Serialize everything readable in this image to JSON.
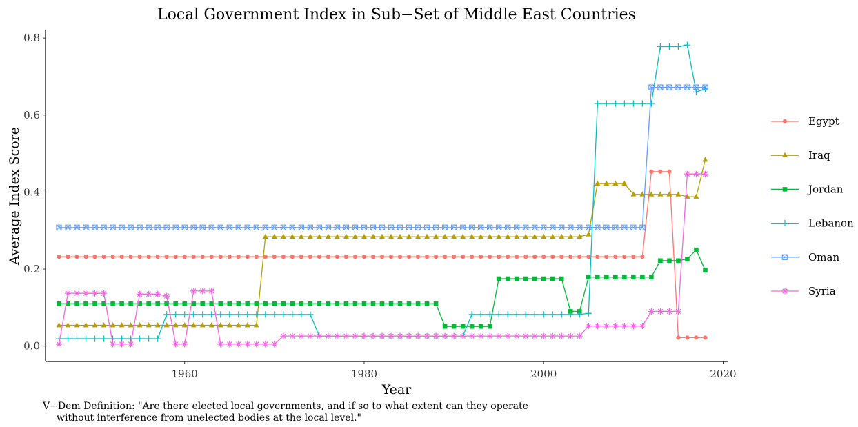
{
  "caption": {
    "line1": "V−Dem Definition: \"Are there elected local governments, and if so to what extent can they operate",
    "line2": "without interference from unelected bodies at the local level.\""
  },
  "chart_data": {
    "type": "line",
    "title": "Local Government Index in Sub−Set of Middle East Countries",
    "xlabel": "Year",
    "ylabel": "Average Index Score",
    "xlim": [
      1944.5,
      2020.5
    ],
    "ylim": [
      -0.04,
      0.82
    ],
    "xticks": [
      1960,
      1980,
      2000,
      2020
    ],
    "yticks": [
      0.0,
      0.2,
      0.4,
      0.6,
      0.8
    ],
    "ytick_labels": [
      "0.0",
      "0.2",
      "0.4",
      "0.6",
      "0.8"
    ],
    "grid": false,
    "legend_position": "right",
    "x": [
      1946,
      1947,
      1948,
      1949,
      1950,
      1951,
      1952,
      1953,
      1954,
      1955,
      1956,
      1957,
      1958,
      1959,
      1960,
      1961,
      1962,
      1963,
      1964,
      1965,
      1966,
      1967,
      1968,
      1969,
      1970,
      1971,
      1972,
      1973,
      1974,
      1975,
      1976,
      1977,
      1978,
      1979,
      1980,
      1981,
      1982,
      1983,
      1984,
      1985,
      1986,
      1987,
      1988,
      1989,
      1990,
      1991,
      1992,
      1993,
      1994,
      1995,
      1996,
      1997,
      1998,
      1999,
      2000,
      2001,
      2002,
      2003,
      2004,
      2005,
      2006,
      2007,
      2008,
      2009,
      2010,
      2011,
      2012,
      2013,
      2014,
      2015,
      2016,
      2017,
      2018
    ],
    "series": [
      {
        "name": "Egypt",
        "color": "#F8766D",
        "marker": "circle",
        "values": [
          0.232,
          0.232,
          0.232,
          0.232,
          0.232,
          0.232,
          0.232,
          0.232,
          0.232,
          0.232,
          0.232,
          0.232,
          0.232,
          0.232,
          0.232,
          0.232,
          0.232,
          0.232,
          0.232,
          0.232,
          0.232,
          0.232,
          0.232,
          0.232,
          0.232,
          0.232,
          0.232,
          0.232,
          0.232,
          0.232,
          0.232,
          0.232,
          0.232,
          0.232,
          0.232,
          0.232,
          0.232,
          0.232,
          0.232,
          0.232,
          0.232,
          0.232,
          0.232,
          0.232,
          0.232,
          0.232,
          0.232,
          0.232,
          0.232,
          0.232,
          0.232,
          0.232,
          0.232,
          0.232,
          0.232,
          0.232,
          0.232,
          0.232,
          0.232,
          0.232,
          0.232,
          0.232,
          0.232,
          0.232,
          0.232,
          0.232,
          0.453,
          0.453,
          0.453,
          0.022,
          0.022,
          0.022,
          0.022
        ]
      },
      {
        "name": "Iraq",
        "color": "#B79F00",
        "marker": "triangle",
        "values": [
          0.054,
          0.054,
          0.054,
          0.054,
          0.054,
          0.054,
          0.054,
          0.054,
          0.054,
          0.054,
          0.054,
          0.054,
          0.054,
          0.054,
          0.054,
          0.054,
          0.054,
          0.054,
          0.054,
          0.054,
          0.054,
          0.054,
          0.054,
          0.284,
          0.284,
          0.284,
          0.284,
          0.284,
          0.284,
          0.284,
          0.284,
          0.284,
          0.284,
          0.284,
          0.284,
          0.284,
          0.284,
          0.284,
          0.284,
          0.284,
          0.284,
          0.284,
          0.284,
          0.284,
          0.284,
          0.284,
          0.284,
          0.284,
          0.284,
          0.284,
          0.284,
          0.284,
          0.284,
          0.284,
          0.284,
          0.284,
          0.284,
          0.284,
          0.284,
          0.29,
          0.422,
          0.422,
          0.422,
          0.422,
          0.394,
          0.394,
          0.394,
          0.394,
          0.394,
          0.394,
          0.388,
          0.388,
          0.484
        ]
      },
      {
        "name": "Jordan",
        "color": "#00BA38",
        "marker": "square",
        "values": [
          0.11,
          0.11,
          0.11,
          0.11,
          0.11,
          0.11,
          0.11,
          0.11,
          0.11,
          0.11,
          0.11,
          0.11,
          0.11,
          0.11,
          0.11,
          0.11,
          0.11,
          0.11,
          0.11,
          0.11,
          0.11,
          0.11,
          0.11,
          0.11,
          0.11,
          0.11,
          0.11,
          0.11,
          0.11,
          0.11,
          0.11,
          0.11,
          0.11,
          0.11,
          0.11,
          0.11,
          0.11,
          0.11,
          0.11,
          0.11,
          0.11,
          0.11,
          0.11,
          0.051,
          0.051,
          0.051,
          0.051,
          0.051,
          0.051,
          0.175,
          0.175,
          0.175,
          0.175,
          0.175,
          0.175,
          0.175,
          0.175,
          0.09,
          0.09,
          0.179,
          0.179,
          0.179,
          0.179,
          0.179,
          0.179,
          0.179,
          0.179,
          0.222,
          0.222,
          0.222,
          0.226,
          0.25,
          0.197
        ]
      },
      {
        "name": "Lebanon",
        "color": "#00BFC4",
        "marker": "plus",
        "values": [
          0.019,
          0.019,
          0.019,
          0.019,
          0.019,
          0.019,
          0.019,
          0.019,
          0.019,
          0.019,
          0.019,
          0.019,
          0.082,
          0.082,
          0.082,
          0.082,
          0.082,
          0.082,
          0.082,
          0.082,
          0.082,
          0.082,
          0.082,
          0.082,
          0.082,
          0.082,
          0.082,
          0.082,
          0.082,
          0.026,
          0.026,
          0.026,
          0.026,
          0.026,
          0.026,
          0.026,
          0.026,
          0.026,
          0.026,
          0.026,
          0.026,
          0.026,
          0.026,
          0.026,
          0.026,
          0.026,
          0.082,
          0.082,
          0.082,
          0.082,
          0.082,
          0.082,
          0.082,
          0.082,
          0.082,
          0.082,
          0.082,
          0.082,
          0.082,
          0.085,
          0.63,
          0.63,
          0.63,
          0.63,
          0.63,
          0.63,
          0.63,
          0.778,
          0.778,
          0.778,
          0.782,
          0.66,
          0.668
        ]
      },
      {
        "name": "Oman",
        "color": "#619CFF",
        "marker": "square-cross",
        "values": [
          0.308,
          0.308,
          0.308,
          0.308,
          0.308,
          0.308,
          0.308,
          0.308,
          0.308,
          0.308,
          0.308,
          0.308,
          0.308,
          0.308,
          0.308,
          0.308,
          0.308,
          0.308,
          0.308,
          0.308,
          0.308,
          0.308,
          0.308,
          0.308,
          0.308,
          0.308,
          0.308,
          0.308,
          0.308,
          0.308,
          0.308,
          0.308,
          0.308,
          0.308,
          0.308,
          0.308,
          0.308,
          0.308,
          0.308,
          0.308,
          0.308,
          0.308,
          0.308,
          0.308,
          0.308,
          0.308,
          0.308,
          0.308,
          0.308,
          0.308,
          0.308,
          0.308,
          0.308,
          0.308,
          0.308,
          0.308,
          0.308,
          0.308,
          0.308,
          0.308,
          0.308,
          0.308,
          0.308,
          0.308,
          0.308,
          0.308,
          0.672,
          0.672,
          0.672,
          0.672,
          0.672,
          0.672,
          0.672
        ]
      },
      {
        "name": "Syria",
        "color": "#F564E3",
        "marker": "asterisk",
        "values": [
          0.005,
          0.137,
          0.137,
          0.137,
          0.137,
          0.137,
          0.005,
          0.005,
          0.005,
          0.135,
          0.135,
          0.135,
          0.13,
          0.005,
          0.005,
          0.143,
          0.143,
          0.143,
          0.005,
          0.005,
          0.005,
          0.005,
          0.005,
          0.005,
          0.005,
          0.026,
          0.026,
          0.026,
          0.026,
          0.026,
          0.026,
          0.026,
          0.026,
          0.026,
          0.026,
          0.026,
          0.026,
          0.026,
          0.026,
          0.026,
          0.026,
          0.026,
          0.026,
          0.026,
          0.026,
          0.026,
          0.026,
          0.026,
          0.026,
          0.026,
          0.026,
          0.026,
          0.026,
          0.026,
          0.026,
          0.026,
          0.026,
          0.026,
          0.026,
          0.052,
          0.052,
          0.052,
          0.052,
          0.052,
          0.052,
          0.052,
          0.09,
          0.09,
          0.09,
          0.09,
          0.447,
          0.447,
          0.447
        ]
      }
    ]
  }
}
